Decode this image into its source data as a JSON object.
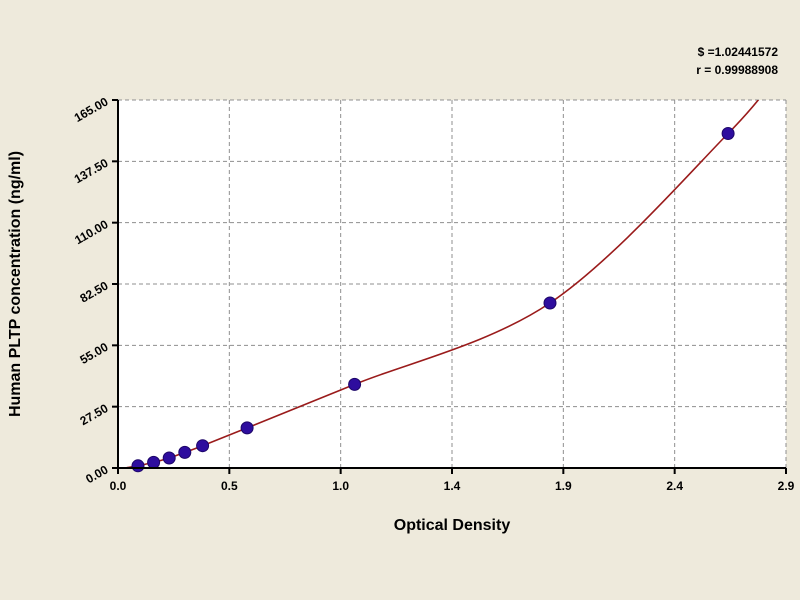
{
  "page": {
    "background": "#eeeadc"
  },
  "chart_data": {
    "type": "scatter",
    "title": "",
    "xlabel": "Optical Density",
    "ylabel": "Human PLTP concentration (ng/ml)",
    "annotations": [
      "$ =1.02441572",
      "r = 0.99988908"
    ],
    "x_tick_labels": [
      "0.0",
      "0.5",
      "1.0",
      "1.4",
      "1.9",
      "2.4",
      "2.9"
    ],
    "x_tick_values": [
      0,
      0.5,
      1.0,
      1.4,
      1.9,
      2.4,
      2.9
    ],
    "y_tick_labels": [
      "0.00",
      "27.50",
      "55.00",
      "82.50",
      "110.00",
      "137.50",
      "165.00"
    ],
    "y_tick_values": [
      0,
      27.5,
      55,
      82.5,
      110,
      137.5,
      165
    ],
    "xlim": [
      0,
      2.9
    ],
    "ylim": [
      0,
      165
    ],
    "grid": true,
    "legend": "none",
    "series": [
      {
        "name": "standard-points",
        "type": "scatter",
        "marker": "circle",
        "color": "#2e0d9e",
        "points": [
          [
            0.09,
            1.0
          ],
          [
            0.16,
            2.5
          ],
          [
            0.23,
            4.5
          ],
          [
            0.3,
            7.0
          ],
          [
            0.38,
            10.0
          ],
          [
            0.58,
            18.0
          ],
          [
            1.05,
            37.5
          ],
          [
            1.84,
            74.0
          ],
          [
            2.64,
            150.0
          ]
        ]
      },
      {
        "name": "fitted-curve",
        "type": "line",
        "color": "#9a1b1b"
      }
    ],
    "colors": {
      "grid": "#8f8f8f",
      "axis": "#000000",
      "plot_bg": "#ffffff",
      "marker": "#2e0d9e",
      "curve": "#9a1b1b"
    }
  }
}
